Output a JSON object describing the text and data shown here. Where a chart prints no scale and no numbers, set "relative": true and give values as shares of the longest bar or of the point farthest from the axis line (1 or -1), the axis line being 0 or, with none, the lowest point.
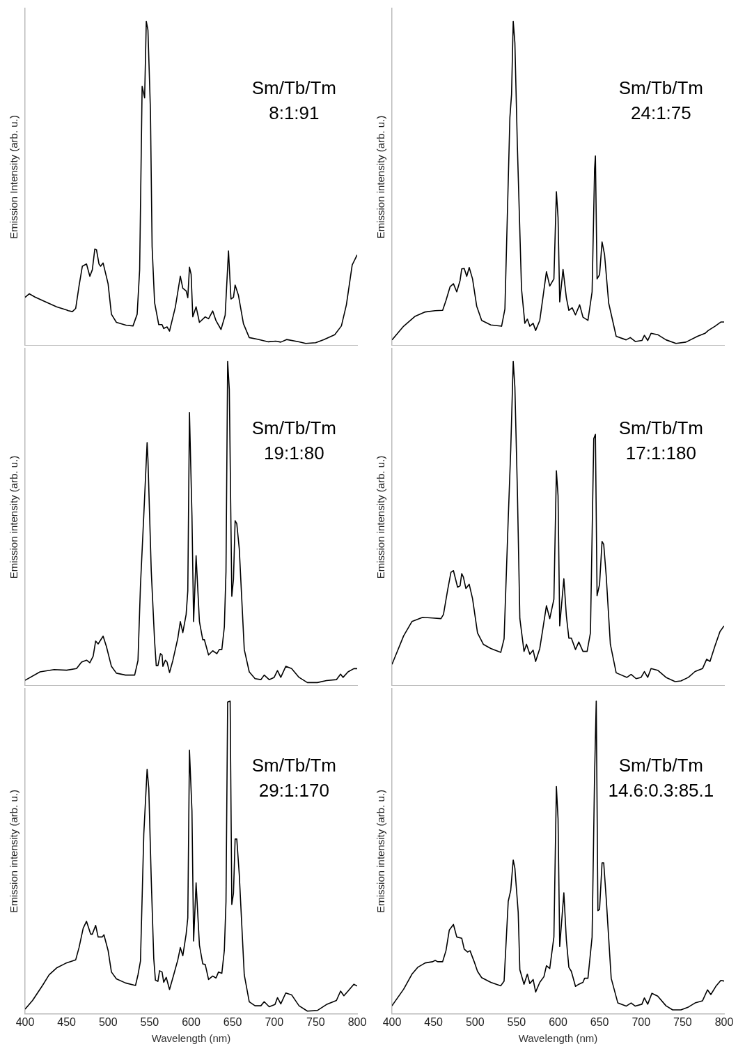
{
  "chart_data": [
    {
      "type": "line",
      "relative": true,
      "ylabel": "Emission Intensity (arb. u.)",
      "annotations": [
        "Sm/Tb/Tm",
        "8:1:91"
      ],
      "xlim": [
        400,
        800
      ],
      "xticks": [
        400,
        450,
        500,
        550,
        600,
        650,
        700,
        750,
        800
      ],
      "tick_labels": false,
      "marker": "none",
      "x": [
        400,
        405,
        412,
        424,
        438,
        450,
        452,
        457,
        461,
        465,
        469,
        474,
        478,
        481,
        484,
        486,
        489,
        491,
        494,
        500,
        504,
        510,
        522,
        530,
        535,
        538,
        541,
        544,
        546,
        548,
        551,
        553,
        556,
        561,
        565,
        567,
        571,
        574,
        581,
        587,
        590,
        594,
        596,
        598,
        600,
        602,
        606,
        610,
        617,
        621,
        626,
        630,
        636,
        641,
        645,
        648,
        651,
        653,
        657,
        663,
        670,
        680,
        693,
        702,
        708,
        715,
        730,
        738,
        750,
        760,
        773,
        781,
        787,
        794,
        800
      ],
      "series": [
        {
          "color": "#000000",
          "values": [
            0.149,
            0.16,
            0.15,
            0.136,
            0.12,
            0.11,
            0.108,
            0.105,
            0.115,
            0.184,
            0.245,
            0.252,
            0.214,
            0.234,
            0.298,
            0.296,
            0.252,
            0.245,
            0.255,
            0.191,
            0.097,
            0.072,
            0.063,
            0.061,
            0.097,
            0.234,
            0.8,
            0.764,
            1.0,
            0.973,
            0.725,
            0.306,
            0.133,
            0.065,
            0.065,
            0.053,
            0.058,
            0.045,
            0.119,
            0.214,
            0.177,
            0.169,
            0.148,
            0.242,
            0.22,
            0.089,
            0.12,
            0.072,
            0.089,
            0.083,
            0.107,
            0.077,
            0.05,
            0.094,
            0.292,
            0.144,
            0.149,
            0.187,
            0.155,
            0.068,
            0.025,
            0.02,
            0.012,
            0.014,
            0.011,
            0.019,
            0.012,
            0.007,
            0.009,
            0.019,
            0.034,
            0.061,
            0.126,
            0.249,
            0.28
          ]
        }
      ]
    },
    {
      "type": "line",
      "relative": true,
      "ylabel": "Emission intensity (arb. u.)",
      "annotations": [
        "Sm/Tb/Tm",
        "24:1:75"
      ],
      "xlim": [
        400,
        800
      ],
      "xticks": [
        400,
        450,
        500,
        550,
        600,
        650,
        700,
        750,
        800
      ],
      "tick_labels": false,
      "marker": "none",
      "x": [
        400,
        414,
        428,
        440,
        452,
        461,
        465,
        470,
        474,
        478,
        482,
        484,
        487,
        490,
        493,
        497,
        502,
        508,
        519,
        532,
        536,
        542,
        544,
        546,
        548,
        551,
        556,
        560,
        563,
        566,
        570,
        573,
        578,
        582,
        586,
        590,
        595,
        598,
        600,
        602,
        606,
        610,
        613,
        617,
        621,
        626,
        630,
        636,
        641,
        644,
        645,
        647,
        650,
        653,
        656,
        661,
        670,
        682,
        687,
        693,
        701,
        704,
        708,
        712,
        720,
        730,
        742,
        754,
        768,
        777,
        781,
        789,
        796,
        800
      ],
      "series": [
        {
          "color": "#000000",
          "values": [
            0.018,
            0.06,
            0.091,
            0.104,
            0.108,
            0.109,
            0.139,
            0.182,
            0.191,
            0.166,
            0.201,
            0.237,
            0.238,
            0.214,
            0.241,
            0.206,
            0.122,
            0.078,
            0.064,
            0.06,
            0.113,
            0.704,
            0.775,
            1.0,
            0.934,
            0.616,
            0.175,
            0.069,
            0.082,
            0.06,
            0.069,
            0.047,
            0.078,
            0.153,
            0.228,
            0.184,
            0.206,
            0.475,
            0.395,
            0.135,
            0.235,
            0.148,
            0.109,
            0.117,
            0.095,
            0.126,
            0.088,
            0.078,
            0.166,
            0.545,
            0.585,
            0.206,
            0.219,
            0.32,
            0.281,
            0.131,
            0.029,
            0.018,
            0.025,
            0.013,
            0.016,
            0.032,
            0.016,
            0.038,
            0.034,
            0.018,
            0.007,
            0.011,
            0.029,
            0.038,
            0.047,
            0.06,
            0.073,
            0.073
          ]
        }
      ]
    },
    {
      "type": "line",
      "relative": true,
      "ylabel": "Emission intensity (arb. u.)",
      "annotations": [
        "Sm/Tb/Tm",
        "19:1:80"
      ],
      "xlim": [
        400,
        800
      ],
      "xticks": [
        400,
        450,
        500,
        550,
        600,
        650,
        700,
        750,
        800
      ],
      "tick_labels": false,
      "marker": "none",
      "x": [
        400,
        418,
        435,
        450,
        462,
        468,
        474,
        478,
        482,
        485,
        488,
        494,
        498,
        504,
        510,
        521,
        532,
        536,
        539,
        543,
        547,
        548,
        552,
        556,
        558,
        560,
        563,
        565,
        566,
        569,
        571,
        574,
        578,
        584,
        587,
        590,
        594,
        596,
        598,
        601,
        603,
        606,
        610,
        614,
        616,
        621,
        626,
        631,
        634,
        637,
        640,
        642,
        644,
        646,
        649,
        651,
        653,
        655,
        658,
        664,
        670,
        677,
        684,
        688,
        694,
        700,
        704,
        708,
        714,
        721,
        730,
        740,
        752,
        763,
        775,
        780,
        783,
        789,
        796,
        800
      ],
      "series": [
        {
          "color": "#000000",
          "values": [
            0.017,
            0.043,
            0.05,
            0.048,
            0.053,
            0.073,
            0.079,
            0.071,
            0.091,
            0.138,
            0.129,
            0.153,
            0.121,
            0.06,
            0.039,
            0.033,
            0.033,
            0.078,
            0.31,
            0.526,
            0.75,
            0.698,
            0.353,
            0.138,
            0.062,
            0.062,
            0.099,
            0.095,
            0.06,
            0.079,
            0.073,
            0.041,
            0.078,
            0.147,
            0.198,
            0.164,
            0.22,
            0.293,
            0.843,
            0.526,
            0.198,
            0.401,
            0.198,
            0.142,
            0.142,
            0.095,
            0.108,
            0.099,
            0.112,
            0.112,
            0.181,
            0.353,
            1.0,
            0.914,
            0.276,
            0.328,
            0.509,
            0.5,
            0.422,
            0.112,
            0.043,
            0.022,
            0.019,
            0.033,
            0.019,
            0.026,
            0.047,
            0.026,
            0.06,
            0.053,
            0.026,
            0.01,
            0.01,
            0.016,
            0.019,
            0.036,
            0.026,
            0.043,
            0.053,
            0.053
          ]
        }
      ]
    },
    {
      "type": "line",
      "relative": true,
      "ylabel": "Emission intensity (arb. u.)",
      "annotations": [
        "Sm/Tb/Tm",
        "17:1:180"
      ],
      "xlim": [
        400,
        800
      ],
      "xticks": [
        400,
        450,
        500,
        550,
        600,
        650,
        700,
        750,
        800
      ],
      "tick_labels": false,
      "marker": "none",
      "x": [
        400,
        414,
        424,
        437,
        449,
        459,
        462,
        467,
        471,
        474,
        479,
        482,
        484,
        486,
        489,
        493,
        497,
        503,
        510,
        519,
        531,
        535,
        540,
        543,
        546,
        548,
        551,
        554,
        559,
        562,
        566,
        570,
        573,
        578,
        582,
        586,
        590,
        595,
        598,
        600,
        602,
        607,
        610,
        613,
        616,
        621,
        625,
        630,
        635,
        639,
        643,
        645,
        647,
        650,
        653,
        655,
        658,
        663,
        670,
        683,
        688,
        694,
        700,
        704,
        708,
        712,
        720,
        730,
        741,
        748,
        757,
        765,
        774,
        779,
        783,
        789,
        795,
        800
      ],
      "series": [
        {
          "color": "#000000",
          "values": [
            0.066,
            0.154,
            0.198,
            0.211,
            0.209,
            0.207,
            0.22,
            0.295,
            0.35,
            0.355,
            0.304,
            0.308,
            0.346,
            0.335,
            0.3,
            0.313,
            0.269,
            0.163,
            0.128,
            0.115,
            0.103,
            0.145,
            0.515,
            0.727,
            1.0,
            0.921,
            0.604,
            0.207,
            0.106,
            0.128,
            0.097,
            0.11,
            0.075,
            0.115,
            0.181,
            0.247,
            0.207,
            0.267,
            0.663,
            0.586,
            0.185,
            0.33,
            0.216,
            0.147,
            0.147,
            0.112,
            0.135,
            0.106,
            0.106,
            0.163,
            0.762,
            0.775,
            0.278,
            0.313,
            0.445,
            0.436,
            0.339,
            0.128,
            0.04,
            0.026,
            0.035,
            0.022,
            0.026,
            0.044,
            0.026,
            0.053,
            0.048,
            0.026,
            0.013,
            0.015,
            0.026,
            0.044,
            0.053,
            0.082,
            0.075,
            0.123,
            0.167,
            0.185
          ]
        }
      ]
    },
    {
      "type": "line",
      "relative": true,
      "xlabel": "Wavelength (nm)",
      "ylabel": "Emission intensity (arb. u.)",
      "annotations": [
        "Sm/Tb/Tm",
        "29:1:170"
      ],
      "xlim": [
        400,
        800
      ],
      "xticks": [
        400,
        450,
        500,
        550,
        600,
        650,
        700,
        750,
        800
      ],
      "tick_labels": "x",
      "marker": "none",
      "x": [
        400,
        409,
        421,
        429,
        438,
        449,
        461,
        465,
        470,
        474,
        479,
        481,
        485,
        488,
        493,
        495,
        500,
        504,
        510,
        521,
        533,
        536,
        539,
        543,
        547,
        549,
        552,
        555,
        557,
        560,
        562,
        565,
        567,
        570,
        574,
        579,
        584,
        587,
        590,
        594,
        596,
        598,
        601,
        603,
        606,
        610,
        614,
        617,
        621,
        626,
        630,
        633,
        637,
        640,
        642,
        644,
        647,
        649,
        651,
        653,
        655,
        658,
        664,
        670,
        677,
        684,
        688,
        694,
        701,
        704,
        708,
        714,
        721,
        730,
        740,
        752,
        763,
        775,
        780,
        784,
        789,
        796,
        800
      ],
      "series": [
        {
          "color": "#000000",
          "values": [
            0.015,
            0.043,
            0.091,
            0.125,
            0.147,
            0.162,
            0.173,
            0.212,
            0.274,
            0.296,
            0.255,
            0.255,
            0.283,
            0.246,
            0.246,
            0.253,
            0.203,
            0.134,
            0.112,
            0.099,
            0.091,
            0.125,
            0.169,
            0.575,
            0.782,
            0.722,
            0.428,
            0.177,
            0.108,
            0.104,
            0.138,
            0.134,
            0.101,
            0.117,
            0.078,
            0.125,
            0.173,
            0.212,
            0.186,
            0.255,
            0.307,
            0.843,
            0.65,
            0.233,
            0.419,
            0.22,
            0.16,
            0.158,
            0.11,
            0.121,
            0.115,
            0.134,
            0.13,
            0.203,
            0.359,
            0.997,
            1.0,
            0.35,
            0.385,
            0.559,
            0.559,
            0.445,
            0.125,
            0.039,
            0.026,
            0.026,
            0.039,
            0.023,
            0.03,
            0.052,
            0.032,
            0.067,
            0.061,
            0.026,
            0.009,
            0.011,
            0.03,
            0.043,
            0.073,
            0.058,
            0.073,
            0.095,
            0.089
          ]
        }
      ]
    },
    {
      "type": "line",
      "relative": true,
      "xlabel": "Wavelength (nm)",
      "ylabel": "Emission intensity (arb. u.)",
      "annotations": [
        "Sm/Tb/Tm",
        "14.6:0.3:85.1"
      ],
      "xlim": [
        400,
        800
      ],
      "xticks": [
        400,
        450,
        500,
        550,
        600,
        650,
        700,
        750,
        800
      ],
      "tick_labels": "x",
      "marker": "none",
      "x": [
        400,
        414,
        424,
        431,
        440,
        449,
        452,
        455,
        461,
        465,
        469,
        474,
        478,
        484,
        487,
        491,
        494,
        499,
        503,
        508,
        519,
        531,
        535,
        540,
        543,
        546,
        548,
        552,
        554,
        559,
        563,
        566,
        570,
        573,
        578,
        583,
        586,
        590,
        595,
        598,
        600,
        602,
        607,
        610,
        613,
        616,
        621,
        625,
        630,
        632,
        636,
        641,
        644,
        646,
        648,
        650,
        653,
        655,
        658,
        664,
        672,
        682,
        688,
        693,
        701,
        704,
        708,
        713,
        720,
        730,
        738,
        748,
        757,
        765,
        774,
        780,
        784,
        790,
        796,
        800
      ],
      "series": [
        {
          "color": "#000000",
          "values": [
            0.026,
            0.079,
            0.127,
            0.149,
            0.163,
            0.167,
            0.171,
            0.167,
            0.167,
            0.202,
            0.268,
            0.286,
            0.246,
            0.242,
            0.207,
            0.198,
            0.202,
            0.167,
            0.136,
            0.116,
            0.101,
            0.09,
            0.105,
            0.36,
            0.395,
            0.492,
            0.466,
            0.325,
            0.141,
            0.095,
            0.127,
            0.097,
            0.11,
            0.07,
            0.101,
            0.119,
            0.154,
            0.145,
            0.246,
            0.727,
            0.624,
            0.215,
            0.387,
            0.237,
            0.149,
            0.136,
            0.088,
            0.095,
            0.101,
            0.114,
            0.114,
            0.246,
            0.765,
            1.0,
            0.33,
            0.334,
            0.483,
            0.483,
            0.369,
            0.114,
            0.035,
            0.025,
            0.035,
            0.025,
            0.031,
            0.051,
            0.031,
            0.066,
            0.057,
            0.026,
            0.013,
            0.013,
            0.022,
            0.035,
            0.042,
            0.077,
            0.062,
            0.088,
            0.107,
            0.105
          ]
        }
      ]
    }
  ]
}
